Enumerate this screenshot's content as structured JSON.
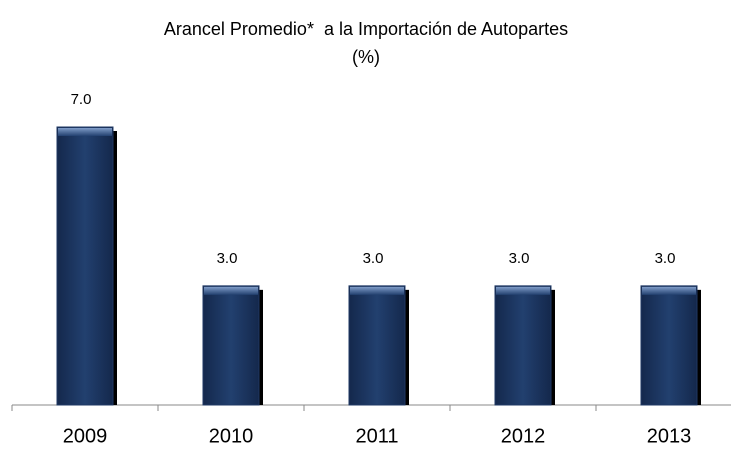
{
  "chart_data": {
    "type": "bar",
    "title": "Arancel Promedio*  a la Importación de Autopartes",
    "subtitle": "(%)",
    "categories": [
      "2009",
      "2010",
      "2011",
      "2012",
      "2013"
    ],
    "values": [
      7.0,
      3.0,
      3.0,
      3.0,
      3.0
    ],
    "value_labels": [
      "7.0",
      "3.0",
      "3.0",
      "3.0",
      "3.0"
    ],
    "color": "#1f3864"
  }
}
